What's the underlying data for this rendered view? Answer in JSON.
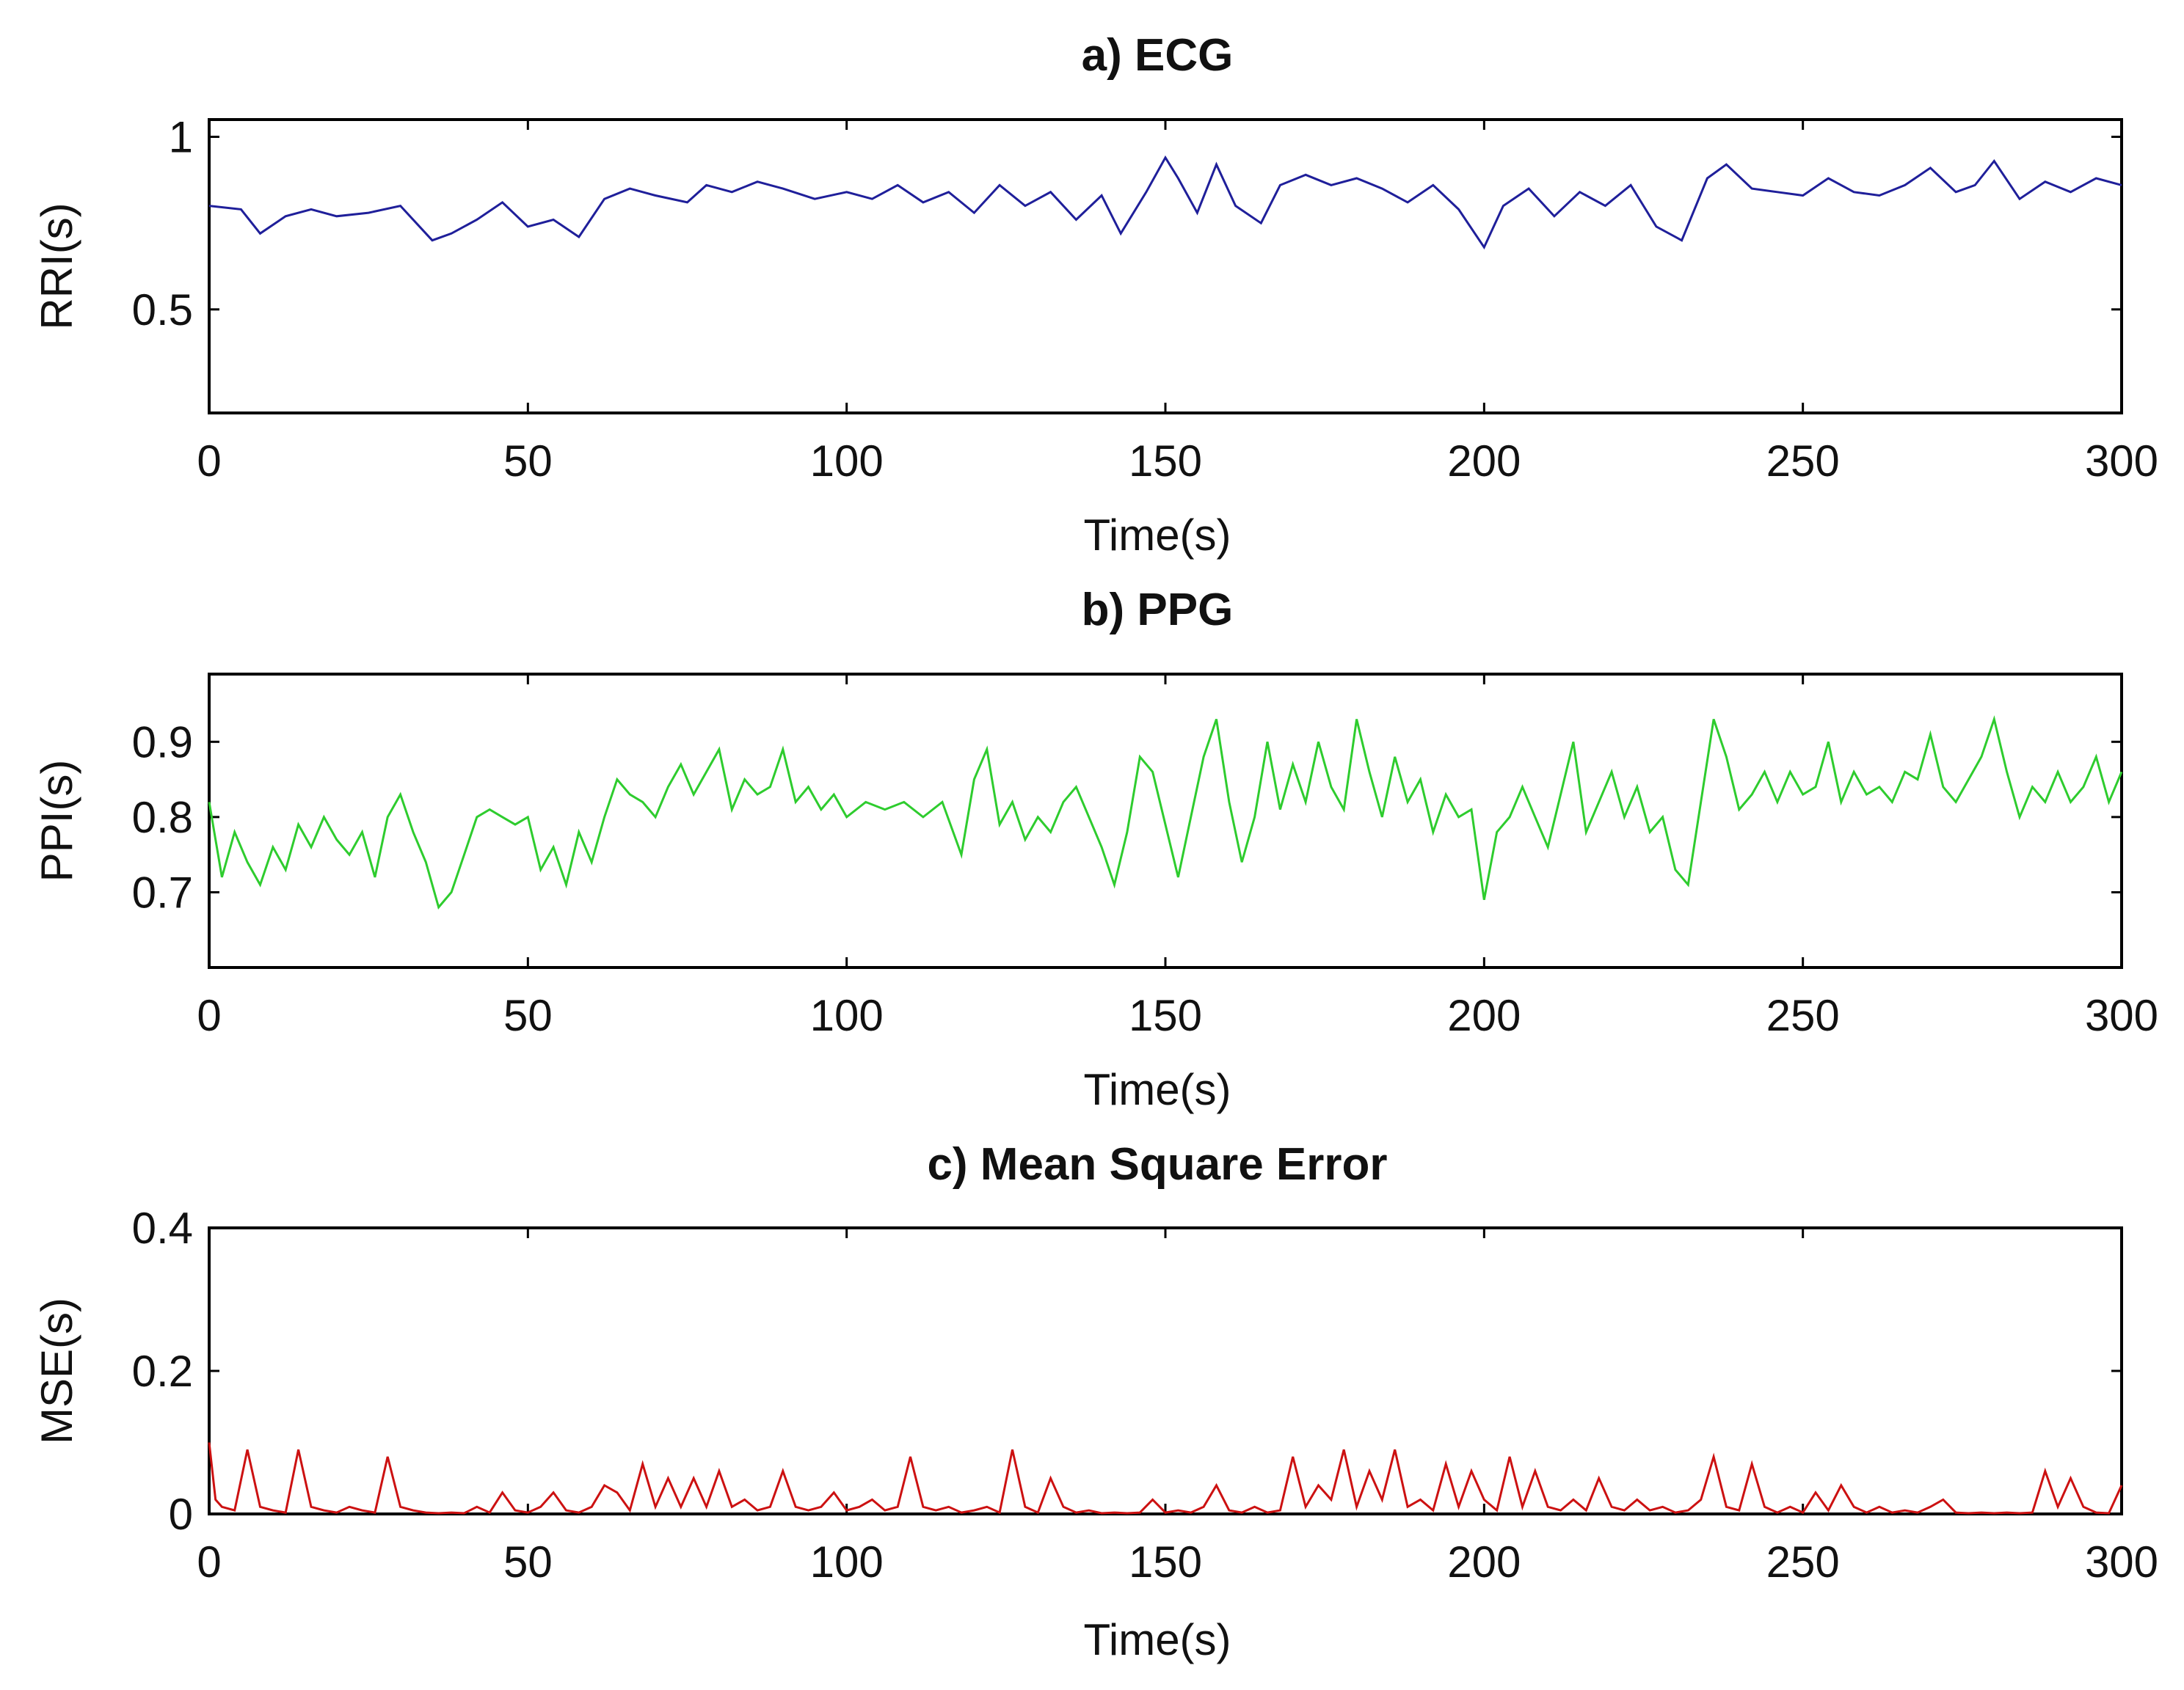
{
  "chart_data": [
    {
      "type": "line",
      "title": "a)  ECG",
      "xlabel": "Time(s)",
      "ylabel": "RRI(s)",
      "xlim": [
        0,
        300
      ],
      "ylim": [
        0.2,
        1.05
      ],
      "xticks": [
        0,
        50,
        100,
        150,
        200,
        250,
        300
      ],
      "xtick_labels": [
        "0",
        "50",
        "100",
        "150",
        "200",
        "250",
        "300"
      ],
      "yticks": [
        0.5,
        1
      ],
      "ytick_labels": [
        "0.5",
        "1"
      ],
      "grid": false,
      "color": "#1f1f9a",
      "series": [
        {
          "name": "RRI",
          "x": [
            0,
            5,
            8,
            12,
            16,
            20,
            25,
            30,
            35,
            38,
            42,
            46,
            50,
            54,
            58,
            62,
            66,
            70,
            75,
            78,
            82,
            86,
            90,
            95,
            100,
            104,
            108,
            112,
            116,
            120,
            124,
            128,
            132,
            136,
            140,
            143,
            147,
            150,
            152,
            155,
            158,
            161,
            165,
            168,
            172,
            176,
            180,
            184,
            188,
            192,
            196,
            200,
            203,
            207,
            211,
            215,
            219,
            223,
            227,
            231,
            235,
            238,
            242,
            246,
            250,
            254,
            258,
            262,
            266,
            270,
            274,
            277,
            280,
            284,
            288,
            292,
            296,
            300
          ],
          "values": [
            0.8,
            0.79,
            0.72,
            0.77,
            0.79,
            0.77,
            0.78,
            0.8,
            0.7,
            0.72,
            0.76,
            0.81,
            0.74,
            0.76,
            0.71,
            0.82,
            0.85,
            0.83,
            0.81,
            0.86,
            0.84,
            0.87,
            0.85,
            0.82,
            0.84,
            0.82,
            0.86,
            0.81,
            0.84,
            0.78,
            0.86,
            0.8,
            0.84,
            0.76,
            0.83,
            0.72,
            0.84,
            0.94,
            0.88,
            0.78,
            0.92,
            0.8,
            0.75,
            0.86,
            0.89,
            0.86,
            0.88,
            0.85,
            0.81,
            0.86,
            0.79,
            0.68,
            0.8,
            0.85,
            0.77,
            0.84,
            0.8,
            0.86,
            0.74,
            0.7,
            0.88,
            0.92,
            0.85,
            0.84,
            0.83,
            0.88,
            0.84,
            0.83,
            0.86,
            0.91,
            0.84,
            0.86,
            0.93,
            0.82,
            0.87,
            0.84,
            0.88,
            0.86
          ]
        }
      ]
    },
    {
      "type": "line",
      "title": "b)  PPG",
      "xlabel": "Time(s)",
      "ylabel": "PPI(s)",
      "xlim": [
        0,
        300
      ],
      "ylim": [
        0.6,
        0.99
      ],
      "xticks": [
        0,
        50,
        100,
        150,
        200,
        250,
        300
      ],
      "xtick_labels": [
        "0",
        "50",
        "100",
        "150",
        "200",
        "250",
        "300"
      ],
      "yticks": [
        0.7,
        0.8,
        0.9
      ],
      "ytick_labels": [
        "0.7",
        "0.8",
        "0.9"
      ],
      "grid": false,
      "color": "#2ecc2e",
      "series": [
        {
          "name": "PPI",
          "x": [
            0,
            2,
            4,
            6,
            8,
            10,
            12,
            14,
            16,
            18,
            20,
            22,
            24,
            26,
            28,
            30,
            32,
            34,
            36,
            38,
            40,
            42,
            44,
            46,
            48,
            50,
            52,
            54,
            56,
            58,
            60,
            62,
            64,
            66,
            68,
            70,
            72,
            74,
            76,
            78,
            80,
            82,
            84,
            86,
            88,
            90,
            92,
            94,
            96,
            98,
            100,
            103,
            106,
            109,
            112,
            115,
            118,
            120,
            122,
            124,
            126,
            128,
            130,
            132,
            134,
            136,
            138,
            140,
            142,
            144,
            146,
            148,
            150,
            152,
            154,
            156,
            158,
            160,
            162,
            164,
            166,
            168,
            170,
            172,
            174,
            176,
            178,
            180,
            182,
            184,
            186,
            188,
            190,
            192,
            194,
            196,
            198,
            200,
            202,
            204,
            206,
            208,
            210,
            212,
            214,
            216,
            218,
            220,
            222,
            224,
            226,
            228,
            230,
            232,
            234,
            236,
            238,
            240,
            242,
            244,
            246,
            248,
            250,
            252,
            254,
            256,
            258,
            260,
            262,
            264,
            266,
            268,
            270,
            272,
            274,
            276,
            278,
            280,
            282,
            284,
            286,
            288,
            290,
            292,
            294,
            296,
            298,
            300
          ],
          "values": [
            0.82,
            0.72,
            0.78,
            0.74,
            0.71,
            0.76,
            0.73,
            0.79,
            0.76,
            0.8,
            0.77,
            0.75,
            0.78,
            0.72,
            0.8,
            0.83,
            0.78,
            0.74,
            0.68,
            0.7,
            0.75,
            0.8,
            0.81,
            0.8,
            0.79,
            0.8,
            0.73,
            0.76,
            0.71,
            0.78,
            0.74,
            0.8,
            0.85,
            0.83,
            0.82,
            0.8,
            0.84,
            0.87,
            0.83,
            0.86,
            0.89,
            0.81,
            0.85,
            0.83,
            0.84,
            0.89,
            0.82,
            0.84,
            0.81,
            0.83,
            0.8,
            0.82,
            0.81,
            0.82,
            0.8,
            0.82,
            0.75,
            0.85,
            0.89,
            0.79,
            0.82,
            0.77,
            0.8,
            0.78,
            0.82,
            0.84,
            0.8,
            0.76,
            0.71,
            0.78,
            0.88,
            0.86,
            0.79,
            0.72,
            0.8,
            0.88,
            0.93,
            0.82,
            0.74,
            0.8,
            0.9,
            0.81,
            0.87,
            0.82,
            0.9,
            0.84,
            0.81,
            0.93,
            0.86,
            0.8,
            0.88,
            0.82,
            0.85,
            0.78,
            0.83,
            0.8,
            0.81,
            0.69,
            0.78,
            0.8,
            0.84,
            0.8,
            0.76,
            0.83,
            0.9,
            0.78,
            0.82,
            0.86,
            0.8,
            0.84,
            0.78,
            0.8,
            0.73,
            0.71,
            0.82,
            0.93,
            0.88,
            0.81,
            0.83,
            0.86,
            0.82,
            0.86,
            0.83,
            0.84,
            0.9,
            0.82,
            0.86,
            0.83,
            0.84,
            0.82,
            0.86,
            0.85,
            0.91,
            0.84,
            0.82,
            0.85,
            0.88,
            0.93,
            0.86,
            0.8,
            0.84,
            0.82,
            0.86,
            0.82,
            0.84,
            0.88,
            0.82,
            0.86
          ]
        }
      ]
    },
    {
      "type": "line",
      "title": "c)  Mean Square Error",
      "xlabel": "Time(s)",
      "ylabel": "MSE(s)",
      "xlim": [
        0,
        300
      ],
      "ylim": [
        0,
        0.4
      ],
      "xticks": [
        0,
        50,
        100,
        150,
        200,
        250,
        300
      ],
      "xtick_labels": [
        "0",
        "50",
        "100",
        "150",
        "200",
        "250",
        "300"
      ],
      "yticks": [
        0,
        0.2,
        0.4
      ],
      "ytick_labels": [
        "0",
        "0.2",
        "0.4"
      ],
      "grid": false,
      "color": "#cc1111",
      "series": [
        {
          "name": "MSE",
          "x": [
            0,
            1,
            2,
            4,
            6,
            8,
            10,
            12,
            14,
            16,
            18,
            20,
            22,
            24,
            26,
            28,
            30,
            32,
            34,
            36,
            38,
            40,
            42,
            44,
            46,
            48,
            50,
            52,
            54,
            56,
            58,
            60,
            62,
            64,
            66,
            68,
            70,
            72,
            74,
            76,
            78,
            80,
            82,
            84,
            86,
            88,
            90,
            92,
            94,
            96,
            98,
            100,
            102,
            104,
            106,
            108,
            110,
            112,
            114,
            116,
            118,
            120,
            122,
            124,
            126,
            128,
            130,
            132,
            134,
            136,
            138,
            140,
            142,
            144,
            146,
            148,
            150,
            152,
            154,
            156,
            158,
            160,
            162,
            164,
            166,
            168,
            170,
            172,
            174,
            176,
            178,
            180,
            182,
            184,
            186,
            188,
            190,
            192,
            194,
            196,
            198,
            200,
            202,
            204,
            206,
            208,
            210,
            212,
            214,
            216,
            218,
            220,
            222,
            224,
            226,
            228,
            230,
            232,
            234,
            236,
            238,
            240,
            242,
            244,
            246,
            248,
            250,
            252,
            254,
            256,
            258,
            260,
            262,
            264,
            266,
            268,
            270,
            272,
            274,
            276,
            278,
            280,
            282,
            284,
            286,
            288,
            290,
            292,
            294,
            296,
            298,
            300
          ],
          "values": [
            0.1,
            0.02,
            0.01,
            0.005,
            0.09,
            0.01,
            0.005,
            0.002,
            0.09,
            0.01,
            0.005,
            0.002,
            0.01,
            0.005,
            0.002,
            0.08,
            0.01,
            0.005,
            0.002,
            0.001,
            0.002,
            0.001,
            0.01,
            0.002,
            0.03,
            0.005,
            0.002,
            0.01,
            0.03,
            0.005,
            0.002,
            0.01,
            0.04,
            0.03,
            0.005,
            0.07,
            0.01,
            0.05,
            0.01,
            0.05,
            0.01,
            0.06,
            0.01,
            0.02,
            0.005,
            0.01,
            0.06,
            0.01,
            0.005,
            0.01,
            0.03,
            0.005,
            0.01,
            0.02,
            0.005,
            0.01,
            0.08,
            0.01,
            0.005,
            0.01,
            0.002,
            0.005,
            0.01,
            0.002,
            0.09,
            0.01,
            0.002,
            0.05,
            0.01,
            0.002,
            0.005,
            0.001,
            0.002,
            0.001,
            0.002,
            0.02,
            0.002,
            0.005,
            0.002,
            0.01,
            0.04,
            0.005,
            0.002,
            0.01,
            0.002,
            0.005,
            0.08,
            0.01,
            0.04,
            0.02,
            0.09,
            0.01,
            0.06,
            0.02,
            0.09,
            0.01,
            0.02,
            0.005,
            0.07,
            0.01,
            0.06,
            0.02,
            0.005,
            0.08,
            0.01,
            0.06,
            0.01,
            0.005,
            0.02,
            0.005,
            0.05,
            0.01,
            0.005,
            0.02,
            0.005,
            0.01,
            0.002,
            0.005,
            0.02,
            0.08,
            0.01,
            0.005,
            0.07,
            0.01,
            0.002,
            0.01,
            0.002,
            0.03,
            0.005,
            0.04,
            0.01,
            0.002,
            0.01,
            0.002,
            0.005,
            0.002,
            0.01,
            0.02,
            0.002,
            0.001,
            0.002,
            0.001,
            0.002,
            0.001,
            0.002,
            0.06,
            0.01,
            0.05,
            0.01,
            0.002,
            0.001,
            0.04
          ]
        }
      ]
    }
  ]
}
